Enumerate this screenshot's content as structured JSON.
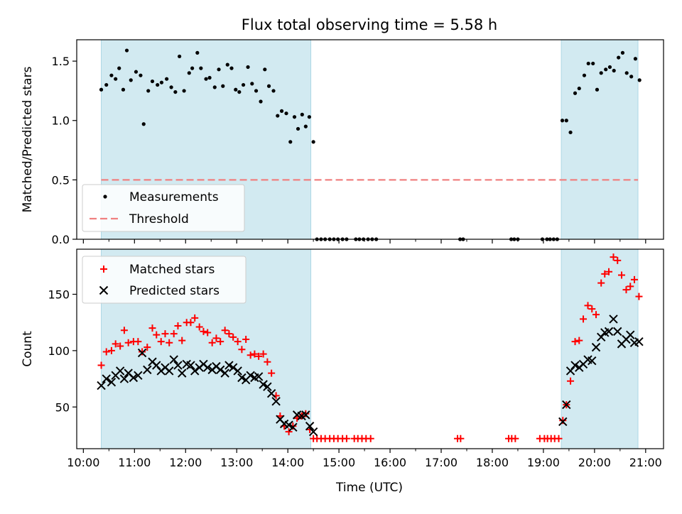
{
  "title": "Flux total observing time = 5.58 h",
  "x_axis_label": "Time (UTC)",
  "x_tick_labels": [
    "10:00",
    "11:00",
    "12:00",
    "13:00",
    "14:00",
    "15:00",
    "16:00",
    "17:00",
    "18:00",
    "19:00",
    "20:00",
    "21:00"
  ],
  "colors": {
    "shade": "#add8e6",
    "measurements": "#000000",
    "threshold": "#f08080",
    "matched": "#ff0000",
    "predicted": "#000000"
  },
  "chart_data": [
    {
      "type": "scatter",
      "panel": "top",
      "ylabel": "Matched/Predicted stars",
      "xlim": [
        9.87,
        21.35
      ],
      "ylim": [
        0.0,
        1.68
      ],
      "y_ticks": [
        "0.0",
        "0.5",
        "1.0",
        "1.5"
      ],
      "shaded_intervals": [
        [
          10.35,
          14.45
        ],
        [
          19.35,
          20.85
        ]
      ],
      "threshold": 0.5,
      "legend": {
        "location": "lower-left",
        "entries": [
          "Measurements",
          "Threshold"
        ]
      },
      "series": [
        {
          "name": "Measurements",
          "marker": "dot",
          "points": [
            [
              10.35,
              1.26
            ],
            [
              10.45,
              1.3
            ],
            [
              10.55,
              1.38
            ],
            [
              10.63,
              1.35
            ],
            [
              10.7,
              1.44
            ],
            [
              10.78,
              1.26
            ],
            [
              10.85,
              1.59
            ],
            [
              10.93,
              1.34
            ],
            [
              11.03,
              1.41
            ],
            [
              11.12,
              1.38
            ],
            [
              11.18,
              0.97
            ],
            [
              11.27,
              1.25
            ],
            [
              11.35,
              1.33
            ],
            [
              11.45,
              1.3
            ],
            [
              11.53,
              1.32
            ],
            [
              11.63,
              1.35
            ],
            [
              11.72,
              1.28
            ],
            [
              11.8,
              1.24
            ],
            [
              11.88,
              1.54
            ],
            [
              11.97,
              1.25
            ],
            [
              12.07,
              1.4
            ],
            [
              12.13,
              1.44
            ],
            [
              12.23,
              1.57
            ],
            [
              12.3,
              1.44
            ],
            [
              12.4,
              1.35
            ],
            [
              12.47,
              1.36
            ],
            [
              12.57,
              1.28
            ],
            [
              12.65,
              1.43
            ],
            [
              12.73,
              1.29
            ],
            [
              12.82,
              1.47
            ],
            [
              12.9,
              1.44
            ],
            [
              12.98,
              1.26
            ],
            [
              13.05,
              1.24
            ],
            [
              13.13,
              1.3
            ],
            [
              13.22,
              1.45
            ],
            [
              13.3,
              1.31
            ],
            [
              13.38,
              1.25
            ],
            [
              13.47,
              1.16
            ],
            [
              13.55,
              1.43
            ],
            [
              13.63,
              1.29
            ],
            [
              13.72,
              1.25
            ],
            [
              13.8,
              1.04
            ],
            [
              13.88,
              1.08
            ],
            [
              13.97,
              1.06
            ],
            [
              14.05,
              0.82
            ],
            [
              14.13,
              1.03
            ],
            [
              14.2,
              0.93
            ],
            [
              14.28,
              1.05
            ],
            [
              14.35,
              0.95
            ],
            [
              14.42,
              1.03
            ],
            [
              14.5,
              0.82
            ],
            [
              14.57,
              0.0
            ],
            [
              14.65,
              0.0
            ],
            [
              14.73,
              0.0
            ],
            [
              14.82,
              0.0
            ],
            [
              14.9,
              0.0
            ],
            [
              14.98,
              0.0
            ],
            [
              15.07,
              0.0
            ],
            [
              15.15,
              0.0
            ],
            [
              15.33,
              0.0
            ],
            [
              15.4,
              0.0
            ],
            [
              15.48,
              0.0
            ],
            [
              15.57,
              0.0
            ],
            [
              15.65,
              0.0
            ],
            [
              15.73,
              0.0
            ],
            [
              17.37,
              0.0
            ],
            [
              17.43,
              0.0
            ],
            [
              18.37,
              0.0
            ],
            [
              18.43,
              0.0
            ],
            [
              18.5,
              0.0
            ],
            [
              18.98,
              0.0
            ],
            [
              19.07,
              0.0
            ],
            [
              19.13,
              0.0
            ],
            [
              19.2,
              0.0
            ],
            [
              19.27,
              0.0
            ],
            [
              19.37,
              1.0
            ],
            [
              19.45,
              1.0
            ],
            [
              19.53,
              0.9
            ],
            [
              19.62,
              1.23
            ],
            [
              19.7,
              1.27
            ],
            [
              19.8,
              1.38
            ],
            [
              19.88,
              1.48
            ],
            [
              19.97,
              1.48
            ],
            [
              20.05,
              1.26
            ],
            [
              20.13,
              1.4
            ],
            [
              20.22,
              1.43
            ],
            [
              20.3,
              1.45
            ],
            [
              20.38,
              1.42
            ],
            [
              20.47,
              1.53
            ],
            [
              20.55,
              1.57
            ],
            [
              20.63,
              1.4
            ],
            [
              20.72,
              1.37
            ],
            [
              20.8,
              1.52
            ],
            [
              20.88,
              1.34
            ]
          ]
        },
        {
          "name": "Threshold",
          "style": "dashed",
          "x": [
            10.35,
            20.85
          ],
          "y": [
            0.5,
            0.5
          ]
        }
      ]
    },
    {
      "type": "scatter",
      "panel": "bottom",
      "ylabel": "Count",
      "xlabel": "Time (UTC)",
      "xlim": [
        9.87,
        21.35
      ],
      "ylim": [
        13,
        190
      ],
      "y_ticks": [
        "50",
        "100",
        "150"
      ],
      "shaded_intervals": [
        [
          10.35,
          14.45
        ],
        [
          19.35,
          20.85
        ]
      ],
      "legend": {
        "location": "upper-left",
        "entries": [
          "Matched stars",
          "Predicted stars"
        ]
      },
      "series": [
        {
          "name": "Matched stars",
          "marker": "plus",
          "points": [
            [
              10.35,
              87
            ],
            [
              10.45,
              99
            ],
            [
              10.55,
              100
            ],
            [
              10.63,
              106
            ],
            [
              10.72,
              104
            ],
            [
              10.8,
              118
            ],
            [
              10.88,
              107
            ],
            [
              10.98,
              108
            ],
            [
              11.07,
              108
            ],
            [
              11.15,
              99
            ],
            [
              11.25,
              103
            ],
            [
              11.35,
              120
            ],
            [
              11.43,
              114
            ],
            [
              11.52,
              108
            ],
            [
              11.6,
              115
            ],
            [
              11.68,
              107
            ],
            [
              11.77,
              115
            ],
            [
              11.85,
              122
            ],
            [
              11.93,
              109
            ],
            [
              12.02,
              125
            ],
            [
              12.1,
              125
            ],
            [
              12.18,
              129
            ],
            [
              12.27,
              121
            ],
            [
              12.35,
              117
            ],
            [
              12.43,
              116
            ],
            [
              12.52,
              107
            ],
            [
              12.6,
              111
            ],
            [
              12.68,
              108
            ],
            [
              12.77,
              118
            ],
            [
              12.85,
              115
            ],
            [
              12.93,
              112
            ],
            [
              13.02,
              108
            ],
            [
              13.1,
              101
            ],
            [
              13.18,
              110
            ],
            [
              13.27,
              96
            ],
            [
              13.35,
              97
            ],
            [
              13.43,
              95
            ],
            [
              13.52,
              97
            ],
            [
              13.6,
              90
            ],
            [
              13.68,
              80
            ],
            [
              13.77,
              60
            ],
            [
              13.85,
              42
            ],
            [
              13.93,
              33
            ],
            [
              14.02,
              28
            ],
            [
              14.1,
              33
            ],
            [
              14.18,
              40
            ],
            [
              14.27,
              42
            ],
            [
              14.35,
              44
            ],
            [
              14.43,
              30
            ],
            [
              14.5,
              22
            ],
            [
              14.57,
              22
            ],
            [
              14.65,
              22
            ],
            [
              14.73,
              22
            ],
            [
              14.82,
              22
            ],
            [
              14.9,
              22
            ],
            [
              14.98,
              22
            ],
            [
              15.07,
              22
            ],
            [
              15.15,
              22
            ],
            [
              15.3,
              22
            ],
            [
              15.37,
              22
            ],
            [
              15.45,
              22
            ],
            [
              15.53,
              22
            ],
            [
              15.62,
              22
            ],
            [
              17.32,
              22
            ],
            [
              17.38,
              22
            ],
            [
              18.32,
              22
            ],
            [
              18.38,
              22
            ],
            [
              18.45,
              22
            ],
            [
              18.93,
              22
            ],
            [
              19.02,
              22
            ],
            [
              19.08,
              22
            ],
            [
              19.15,
              22
            ],
            [
              19.22,
              22
            ],
            [
              19.3,
              22
            ],
            [
              19.38,
              38
            ],
            [
              19.45,
              52
            ],
            [
              19.53,
              73
            ],
            [
              19.62,
              108
            ],
            [
              19.7,
              109
            ],
            [
              19.78,
              128
            ],
            [
              19.87,
              140
            ],
            [
              19.95,
              137
            ],
            [
              20.03,
              132
            ],
            [
              20.13,
              160
            ],
            [
              20.2,
              168
            ],
            [
              20.28,
              170
            ],
            [
              20.37,
              183
            ],
            [
              20.45,
              180
            ],
            [
              20.53,
              167
            ],
            [
              20.62,
              154
            ],
            [
              20.7,
              157
            ],
            [
              20.78,
              163
            ],
            [
              20.87,
              148
            ]
          ]
        },
        {
          "name": "Predicted stars",
          "marker": "x",
          "points": [
            [
              10.35,
              69
            ],
            [
              10.45,
              75
            ],
            [
              10.55,
              72
            ],
            [
              10.63,
              78
            ],
            [
              10.72,
              82
            ],
            [
              10.8,
              75
            ],
            [
              10.88,
              80
            ],
            [
              10.98,
              76
            ],
            [
              11.07,
              78
            ],
            [
              11.15,
              98
            ],
            [
              11.25,
              83
            ],
            [
              11.35,
              90
            ],
            [
              11.43,
              87
            ],
            [
              11.52,
              82
            ],
            [
              11.6,
              85
            ],
            [
              11.68,
              82
            ],
            [
              11.77,
              92
            ],
            [
              11.85,
              87
            ],
            [
              11.93,
              80
            ],
            [
              12.02,
              88
            ],
            [
              12.1,
              87
            ],
            [
              12.18,
              82
            ],
            [
              12.27,
              85
            ],
            [
              12.35,
              88
            ],
            [
              12.43,
              85
            ],
            [
              12.52,
              83
            ],
            [
              12.6,
              86
            ],
            [
              12.68,
              83
            ],
            [
              12.77,
              80
            ],
            [
              12.85,
              87
            ],
            [
              12.93,
              85
            ],
            [
              13.02,
              82
            ],
            [
              13.1,
              76
            ],
            [
              13.18,
              74
            ],
            [
              13.27,
              78
            ],
            [
              13.35,
              76
            ],
            [
              13.43,
              77
            ],
            [
              13.52,
              70
            ],
            [
              13.6,
              68
            ],
            [
              13.68,
              62
            ],
            [
              13.77,
              55
            ],
            [
              13.85,
              39
            ],
            [
              13.93,
              35
            ],
            [
              14.02,
              34
            ],
            [
              14.1,
              32
            ],
            [
              14.18,
              43
            ],
            [
              14.27,
              42
            ],
            [
              14.35,
              43
            ],
            [
              14.43,
              33
            ],
            [
              14.5,
              28
            ],
            [
              19.38,
              37
            ],
            [
              19.45,
              52
            ],
            [
              19.53,
              82
            ],
            [
              19.62,
              87
            ],
            [
              19.7,
              85
            ],
            [
              19.78,
              88
            ],
            [
              19.87,
              92
            ],
            [
              19.95,
              91
            ],
            [
              20.03,
              103
            ],
            [
              20.13,
              112
            ],
            [
              20.2,
              116
            ],
            [
              20.28,
              117
            ],
            [
              20.37,
              128
            ],
            [
              20.45,
              117
            ],
            [
              20.53,
              106
            ],
            [
              20.62,
              110
            ],
            [
              20.7,
              114
            ],
            [
              20.78,
              107
            ],
            [
              20.87,
              108
            ]
          ]
        }
      ]
    }
  ]
}
